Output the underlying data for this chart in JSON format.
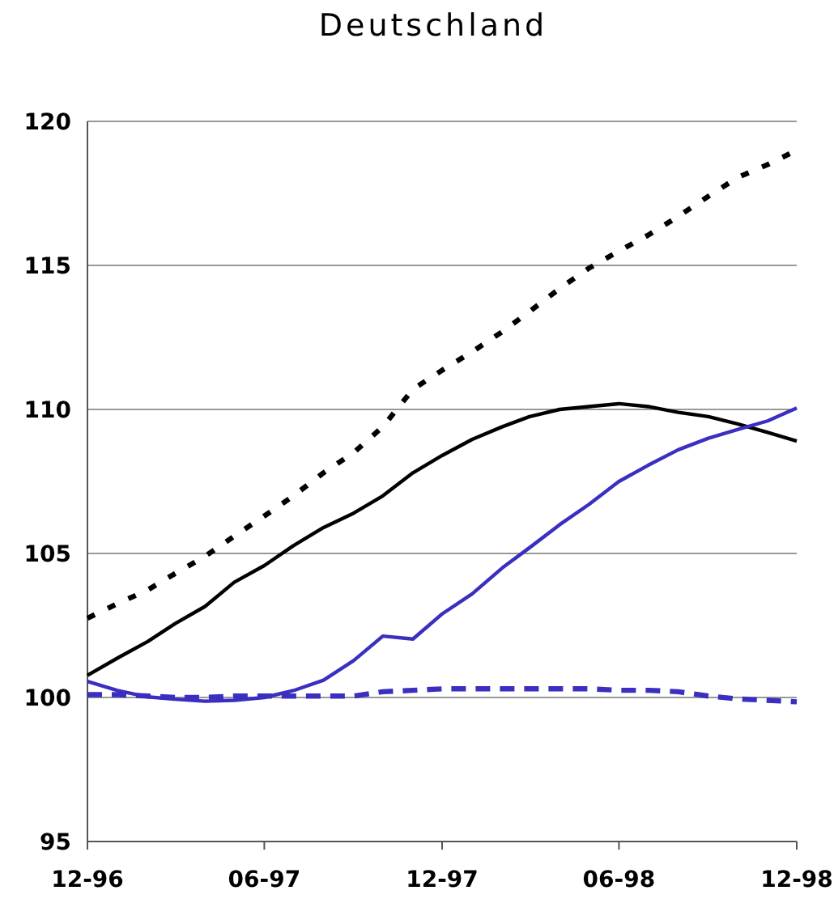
{
  "chart_data": {
    "type": "line",
    "title": "Deutschland",
    "x": [
      "1996-12",
      "1997-01",
      "1997-02",
      "1997-03",
      "1997-04",
      "1997-05",
      "1997-06",
      "1997-07",
      "1997-08",
      "1997-09",
      "1997-10",
      "1997-11",
      "1997-12",
      "1998-01",
      "1998-02",
      "1998-03",
      "1998-04",
      "1998-05",
      "1998-06",
      "1998-07",
      "1998-08",
      "1998-09",
      "1998-10",
      "1998-11",
      "1998-12"
    ],
    "series": [
      {
        "color": "#000000",
        "line_style": "dotted",
        "values": [
          102.75,
          103.26,
          103.73,
          104.3,
          104.9,
          105.6,
          106.3,
          107.0,
          107.8,
          108.5,
          109.4,
          110.7,
          111.36,
          112.0,
          112.7,
          113.4,
          114.2,
          114.9,
          115.5,
          116.05,
          116.7,
          117.4,
          118.05,
          118.5,
          119.0
        ]
      },
      {
        "color": "#000000",
        "line_style": "solid",
        "values": [
          100.77,
          101.37,
          101.94,
          102.56,
          103.16,
          104.0,
          104.58,
          105.27,
          105.9,
          106.4,
          107.0,
          107.8,
          108.4,
          108.96,
          109.4,
          109.75,
          110.0,
          110.1,
          110.2,
          110.1,
          109.9,
          109.75,
          109.5,
          109.2,
          108.9
        ]
      },
      {
        "color": "#3a2fc0",
        "line_style": "solid",
        "values": [
          100.56,
          100.24,
          100.02,
          99.94,
          99.87,
          99.9,
          100.0,
          100.24,
          100.6,
          101.28,
          102.13,
          102.03,
          102.9,
          103.6,
          104.5,
          105.2,
          106.0,
          106.7,
          107.5,
          108.06,
          108.6,
          109.0,
          109.3,
          109.6,
          110.05
        ]
      },
      {
        "color": "#3a2fc0",
        "line_style": "dashed",
        "values": [
          100.1,
          100.1,
          100.05,
          100.0,
          100.0,
          100.05,
          100.05,
          100.05,
          100.05,
          100.05,
          100.2,
          100.25,
          100.3,
          100.3,
          100.3,
          100.3,
          100.3,
          100.3,
          100.25,
          100.25,
          100.2,
          100.05,
          99.95,
          99.9,
          99.85
        ]
      }
    ],
    "xlim": [
      "1996-12",
      "1998-12"
    ],
    "xticks": [
      {
        "value": "1996-12",
        "label": "12-96"
      },
      {
        "value": "1997-06",
        "label": "06-97"
      },
      {
        "value": "1997-12",
        "label": "12-97"
      },
      {
        "value": "1998-06",
        "label": "06-98"
      },
      {
        "value": "1998-12",
        "label": "12-98"
      }
    ],
    "ylim": [
      95,
      120
    ],
    "yticks": [
      95,
      100,
      105,
      110,
      115,
      120
    ],
    "grid": "y"
  }
}
